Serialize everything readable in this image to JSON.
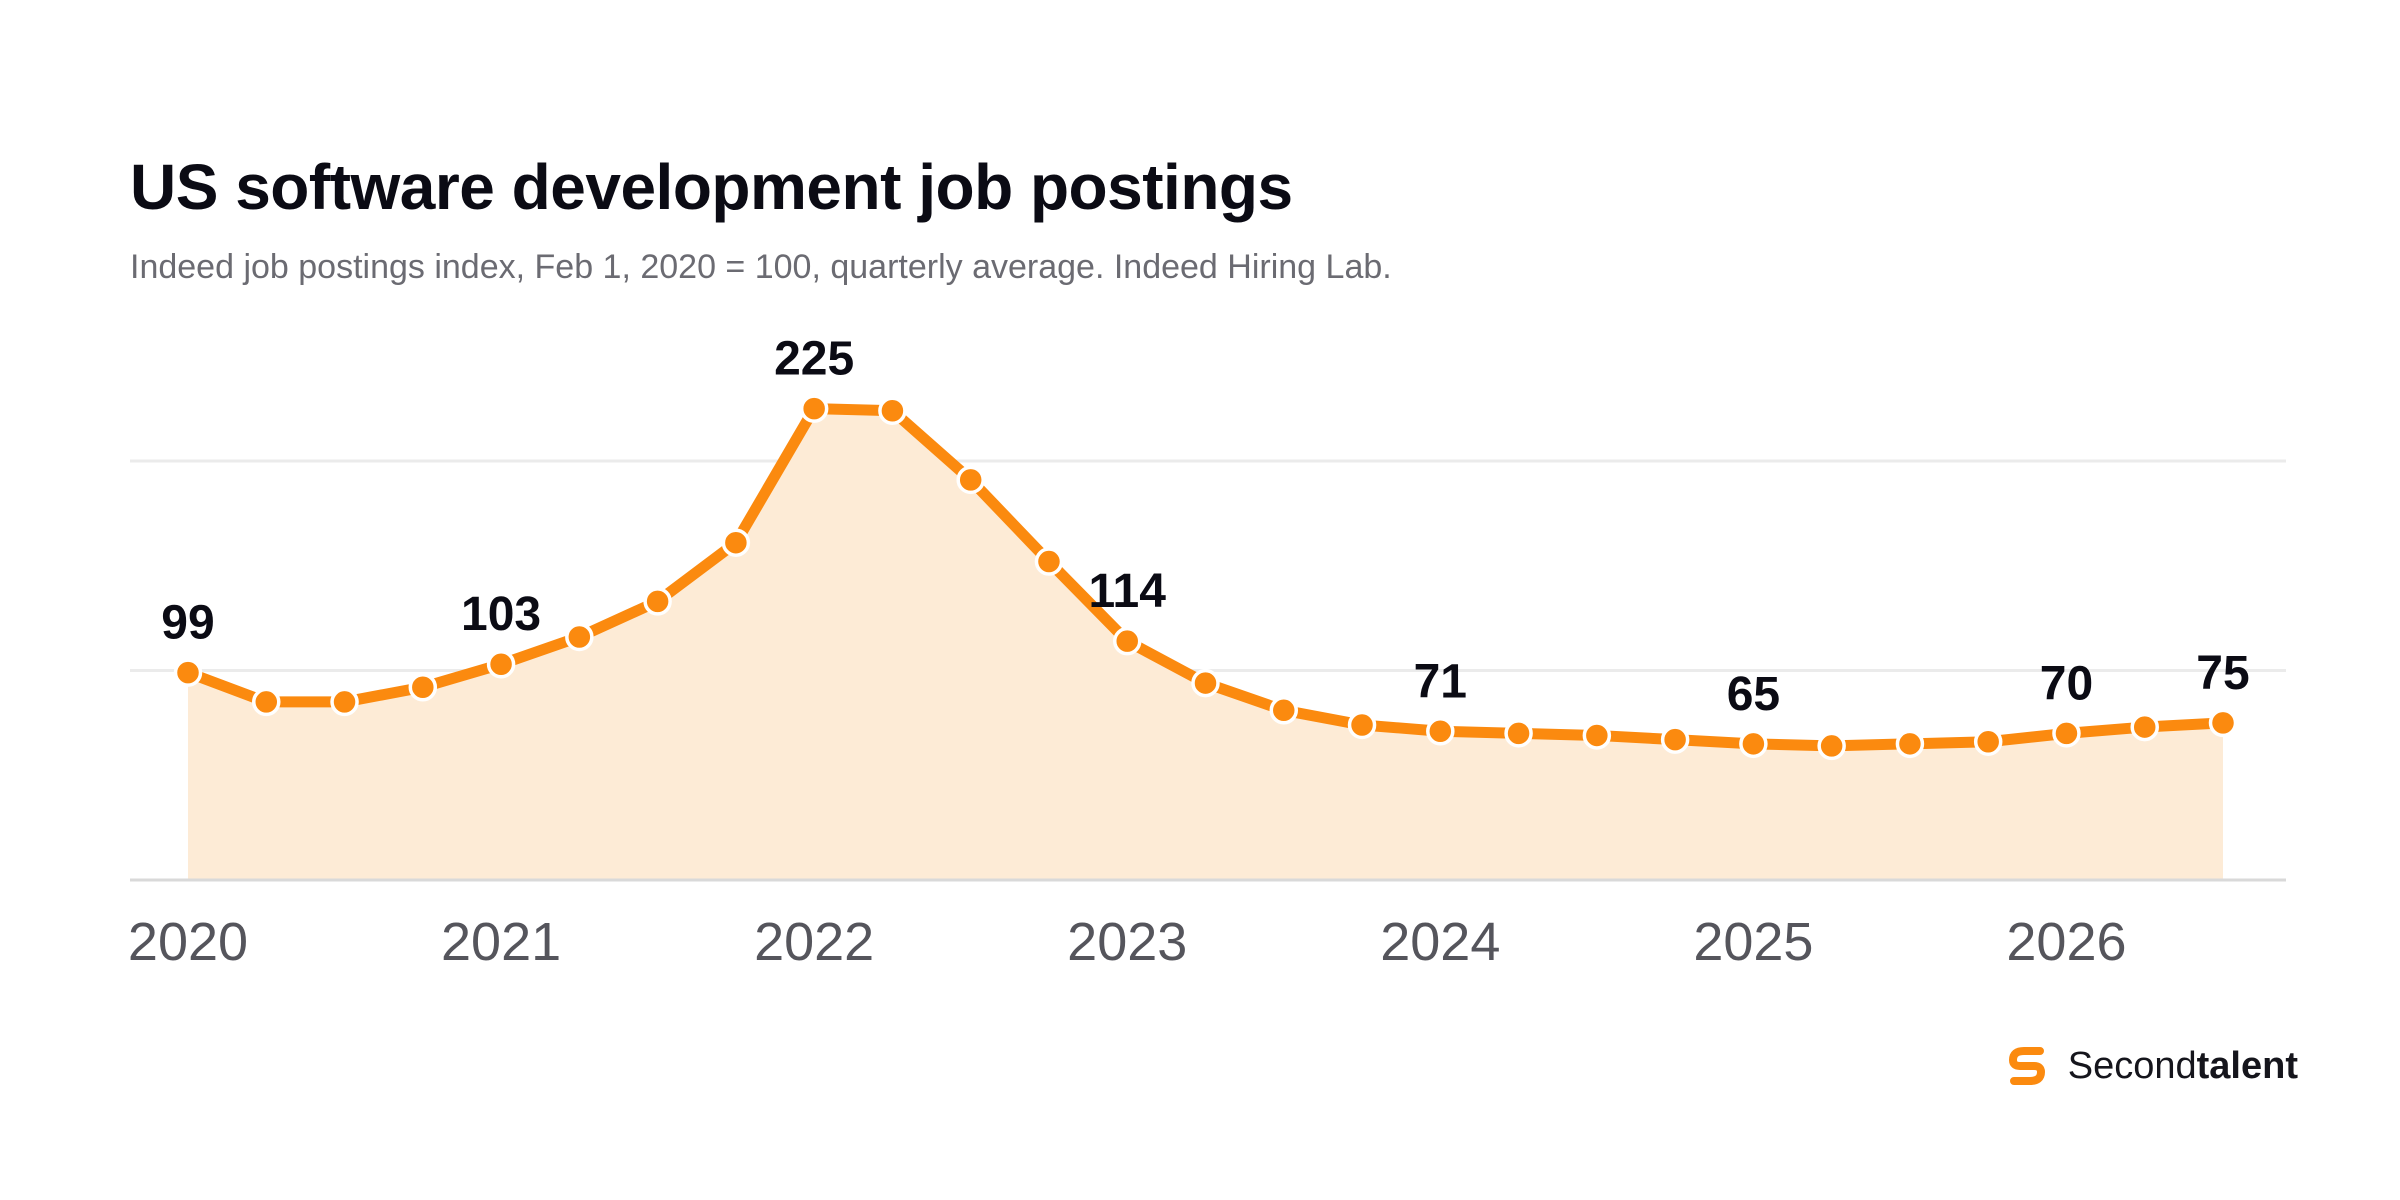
{
  "header": {
    "title": "US software development job postings",
    "subtitle": "Indeed job postings index, Feb 1, 2020 = 100, quarterly average. Indeed Hiring Lab."
  },
  "brand": {
    "name_light": "Second",
    "name_bold": "talent",
    "icon": "secondtalent-logo-icon"
  },
  "colors": {
    "line": "#FB8A0F",
    "area": "#FDEBD6",
    "grid": "#EBEBEB",
    "axis": "#D9D9D9",
    "label": "#0b0b14",
    "tick": "#55555c"
  },
  "chart_data": {
    "type": "line",
    "x_unit": "year",
    "x": [
      2020.0,
      2020.25,
      2020.5,
      2020.75,
      2021.0,
      2021.25,
      2021.5,
      2021.75,
      2022.0,
      2022.25,
      2022.5,
      2022.75,
      2023.0,
      2023.25,
      2023.5,
      2023.75,
      2024.0,
      2024.25,
      2024.5,
      2024.75,
      2025.0,
      2025.25,
      2025.5,
      2025.75,
      2026.0,
      2026.25,
      2026.5
    ],
    "series": [
      {
        "values": [
          99,
          85,
          85,
          92,
          103,
          116,
          133,
          161,
          225,
          224,
          191,
          152,
          114,
          94,
          81,
          74,
          71,
          70,
          69,
          67,
          65,
          64,
          65,
          66,
          70,
          73,
          75
        ]
      }
    ],
    "data_labels": [
      {
        "index": 0,
        "text": "99"
      },
      {
        "index": 4,
        "text": "103"
      },
      {
        "index": 8,
        "text": "225"
      },
      {
        "index": 12,
        "text": "114"
      },
      {
        "index": 16,
        "text": "71"
      },
      {
        "index": 20,
        "text": "65"
      },
      {
        "index": 24,
        "text": "70"
      },
      {
        "index": 26,
        "text": "75"
      }
    ],
    "x_ticks": [
      "2020",
      "2021",
      "2022",
      "2023",
      "2024",
      "2025",
      "2026"
    ],
    "xlim": [
      2020,
      2026.5
    ],
    "ylim": [
      0,
      200
    ],
    "y_gridlines": [
      0,
      100,
      200
    ],
    "grid": true,
    "legend": "none"
  }
}
